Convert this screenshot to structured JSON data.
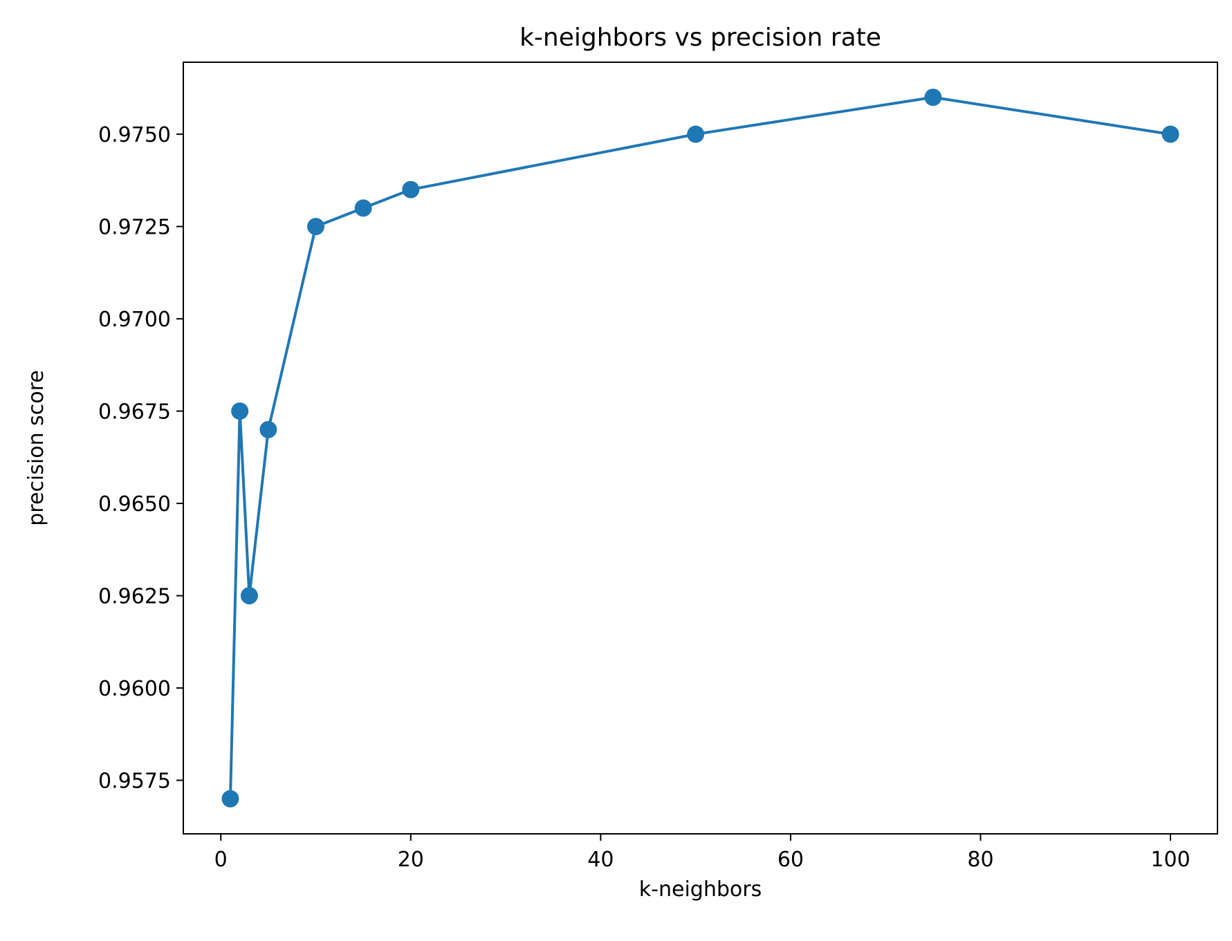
{
  "chart_data": {
    "type": "line",
    "title": "k-neighbors vs precision rate",
    "xlabel": "k-neighbors",
    "ylabel": "precision score",
    "x": [
      1,
      2,
      3,
      5,
      10,
      15,
      20,
      50,
      75,
      100
    ],
    "series": [
      {
        "values": [
          0.957,
          0.9675,
          0.9625,
          0.967,
          0.9725,
          0.973,
          0.9735,
          0.975,
          0.976,
          0.975
        ],
        "color": "#1f77b4",
        "marker": "circle"
      }
    ],
    "xlim": [
      -3.95,
      104.95
    ],
    "ylim": [
      0.95605,
      0.97695
    ],
    "xticks": [
      0,
      20,
      40,
      60,
      80,
      100
    ],
    "xtick_labels": [
      "0",
      "20",
      "40",
      "60",
      "80",
      "100"
    ],
    "yticks": [
      0.9575,
      0.96,
      0.9625,
      0.965,
      0.9675,
      0.97,
      0.9725,
      0.975
    ],
    "ytick_labels": [
      "0.9575",
      "0.9600",
      "0.9625",
      "0.9650",
      "0.9675",
      "0.9700",
      "0.9725",
      "0.9750"
    ],
    "grid": false,
    "legend": "none"
  }
}
